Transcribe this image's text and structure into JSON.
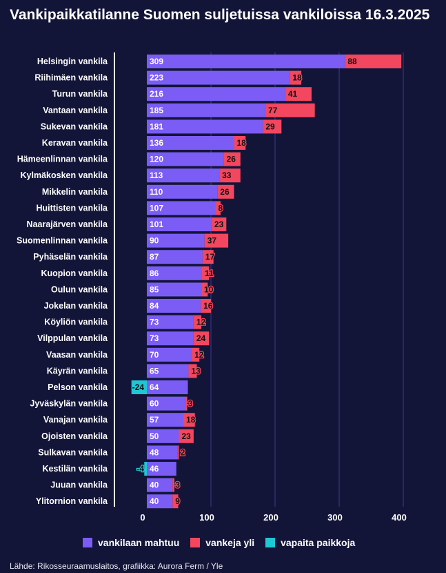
{
  "title": "Vankipaikkatilanne Suomen suljetuissa vankiloissa 16.3.2025",
  "source": "Lähde: Rikosseuraamuslaitos, grafiikka: Aurora Ferm / Yle",
  "colors": {
    "capacity": "#7b5cf5",
    "over": "#f2475f",
    "free": "#1fc7d4",
    "background": "#131538",
    "grid": "#3a3d8c"
  },
  "chart_data": {
    "type": "bar",
    "orientation": "horizontal",
    "stacked": true,
    "title": "Vankipaikkatilanne Suomen suljetuissa vankiloissa 16.3.2025",
    "xlim": [
      0,
      400
    ],
    "xticks": [
      0,
      100,
      200,
      300,
      400
    ],
    "grid": true,
    "legend_position": "bottom",
    "categories": [
      "Helsingin vankila",
      "Riihimäen vankila",
      "Turun vankila",
      "Vantaan vankila",
      "Sukevan vankila",
      "Keravan vankila",
      "Hämeenlinnan vankila",
      "Kylmäkosken vankila",
      "Mikkelin vankila",
      "Huittisten vankila",
      "Naarajärven vankila",
      "Suomenlinnan vankila",
      "Pyhäselän vankila",
      "Kuopion vankila",
      "Oulun vankila",
      "Jokelan vankila",
      "Köyliön vankila",
      "Vilppulan vankila",
      "Vaasan vankila",
      "Käyrän vankila",
      "Pelson vankila",
      "Jyväskylän vankila",
      "Vanajan vankila",
      "Ojoisten vankila",
      "Sulkavan vankila",
      "Kestilän vankila",
      "Juuan vankila",
      "Ylitornion vankila"
    ],
    "series": [
      {
        "name": "vankilaan mahtuu",
        "values": [
          309,
          223,
          216,
          185,
          181,
          136,
          120,
          113,
          110,
          107,
          101,
          90,
          87,
          86,
          85,
          84,
          73,
          73,
          70,
          65,
          64,
          60,
          57,
          50,
          48,
          46,
          40,
          40
        ]
      },
      {
        "name": "vankeja yli",
        "values": [
          88,
          18,
          41,
          77,
          29,
          18,
          26,
          33,
          26,
          8,
          23,
          37,
          17,
          11,
          10,
          16,
          12,
          24,
          12,
          13,
          null,
          3,
          18,
          23,
          2,
          null,
          3,
          9
        ]
      },
      {
        "name": "vapaita paikkoja",
        "values": [
          null,
          null,
          null,
          null,
          null,
          null,
          null,
          null,
          null,
          null,
          null,
          null,
          null,
          null,
          null,
          null,
          null,
          null,
          null,
          null,
          -24,
          null,
          null,
          null,
          null,
          -4,
          null,
          null
        ]
      }
    ]
  }
}
